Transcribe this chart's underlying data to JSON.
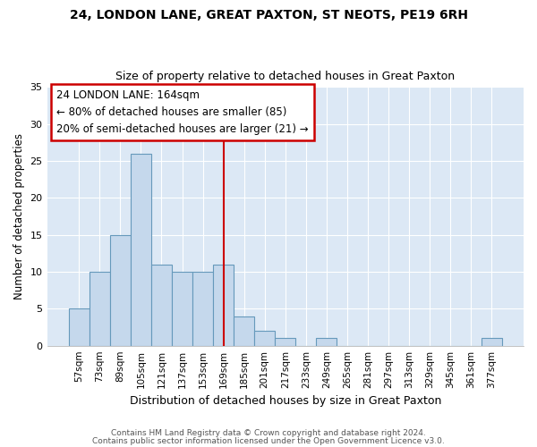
{
  "title1": "24, LONDON LANE, GREAT PAXTON, ST NEOTS, PE19 6RH",
  "title2": "Size of property relative to detached houses in Great Paxton",
  "xlabel": "Distribution of detached houses by size in Great Paxton",
  "ylabel": "Number of detached properties",
  "bar_labels": [
    "57sqm",
    "73sqm",
    "89sqm",
    "105sqm",
    "121sqm",
    "137sqm",
    "153sqm",
    "169sqm",
    "185sqm",
    "201sqm",
    "217sqm",
    "233sqm",
    "249sqm",
    "265sqm",
    "281sqm",
    "297sqm",
    "313sqm",
    "329sqm",
    "345sqm",
    "361sqm",
    "377sqm"
  ],
  "bar_values": [
    5,
    10,
    15,
    26,
    11,
    10,
    10,
    11,
    4,
    2,
    1,
    0,
    1,
    0,
    0,
    0,
    0,
    0,
    0,
    0,
    1
  ],
  "bar_color": "#c5d8ec",
  "bar_edge_color": "#6699bb",
  "bar_width": 1.0,
  "vline_x": 7.0,
  "vline_color": "#cc0000",
  "annotation_line1": "24 LONDON LANE: 164sqm",
  "annotation_line2": "← 80% of detached houses are smaller (85)",
  "annotation_line3": "20% of semi-detached houses are larger (21) →",
  "annotation_box_color": "#ffffff",
  "annotation_box_edge": "#cc0000",
  "ylim": [
    0,
    35
  ],
  "yticks": [
    0,
    5,
    10,
    15,
    20,
    25,
    30,
    35
  ],
  "footer1": "Contains HM Land Registry data © Crown copyright and database right 2024.",
  "footer2": "Contains public sector information licensed under the Open Government Licence v3.0.",
  "bg_color": "#ffffff",
  "plot_bg_color": "#dce8f5"
}
